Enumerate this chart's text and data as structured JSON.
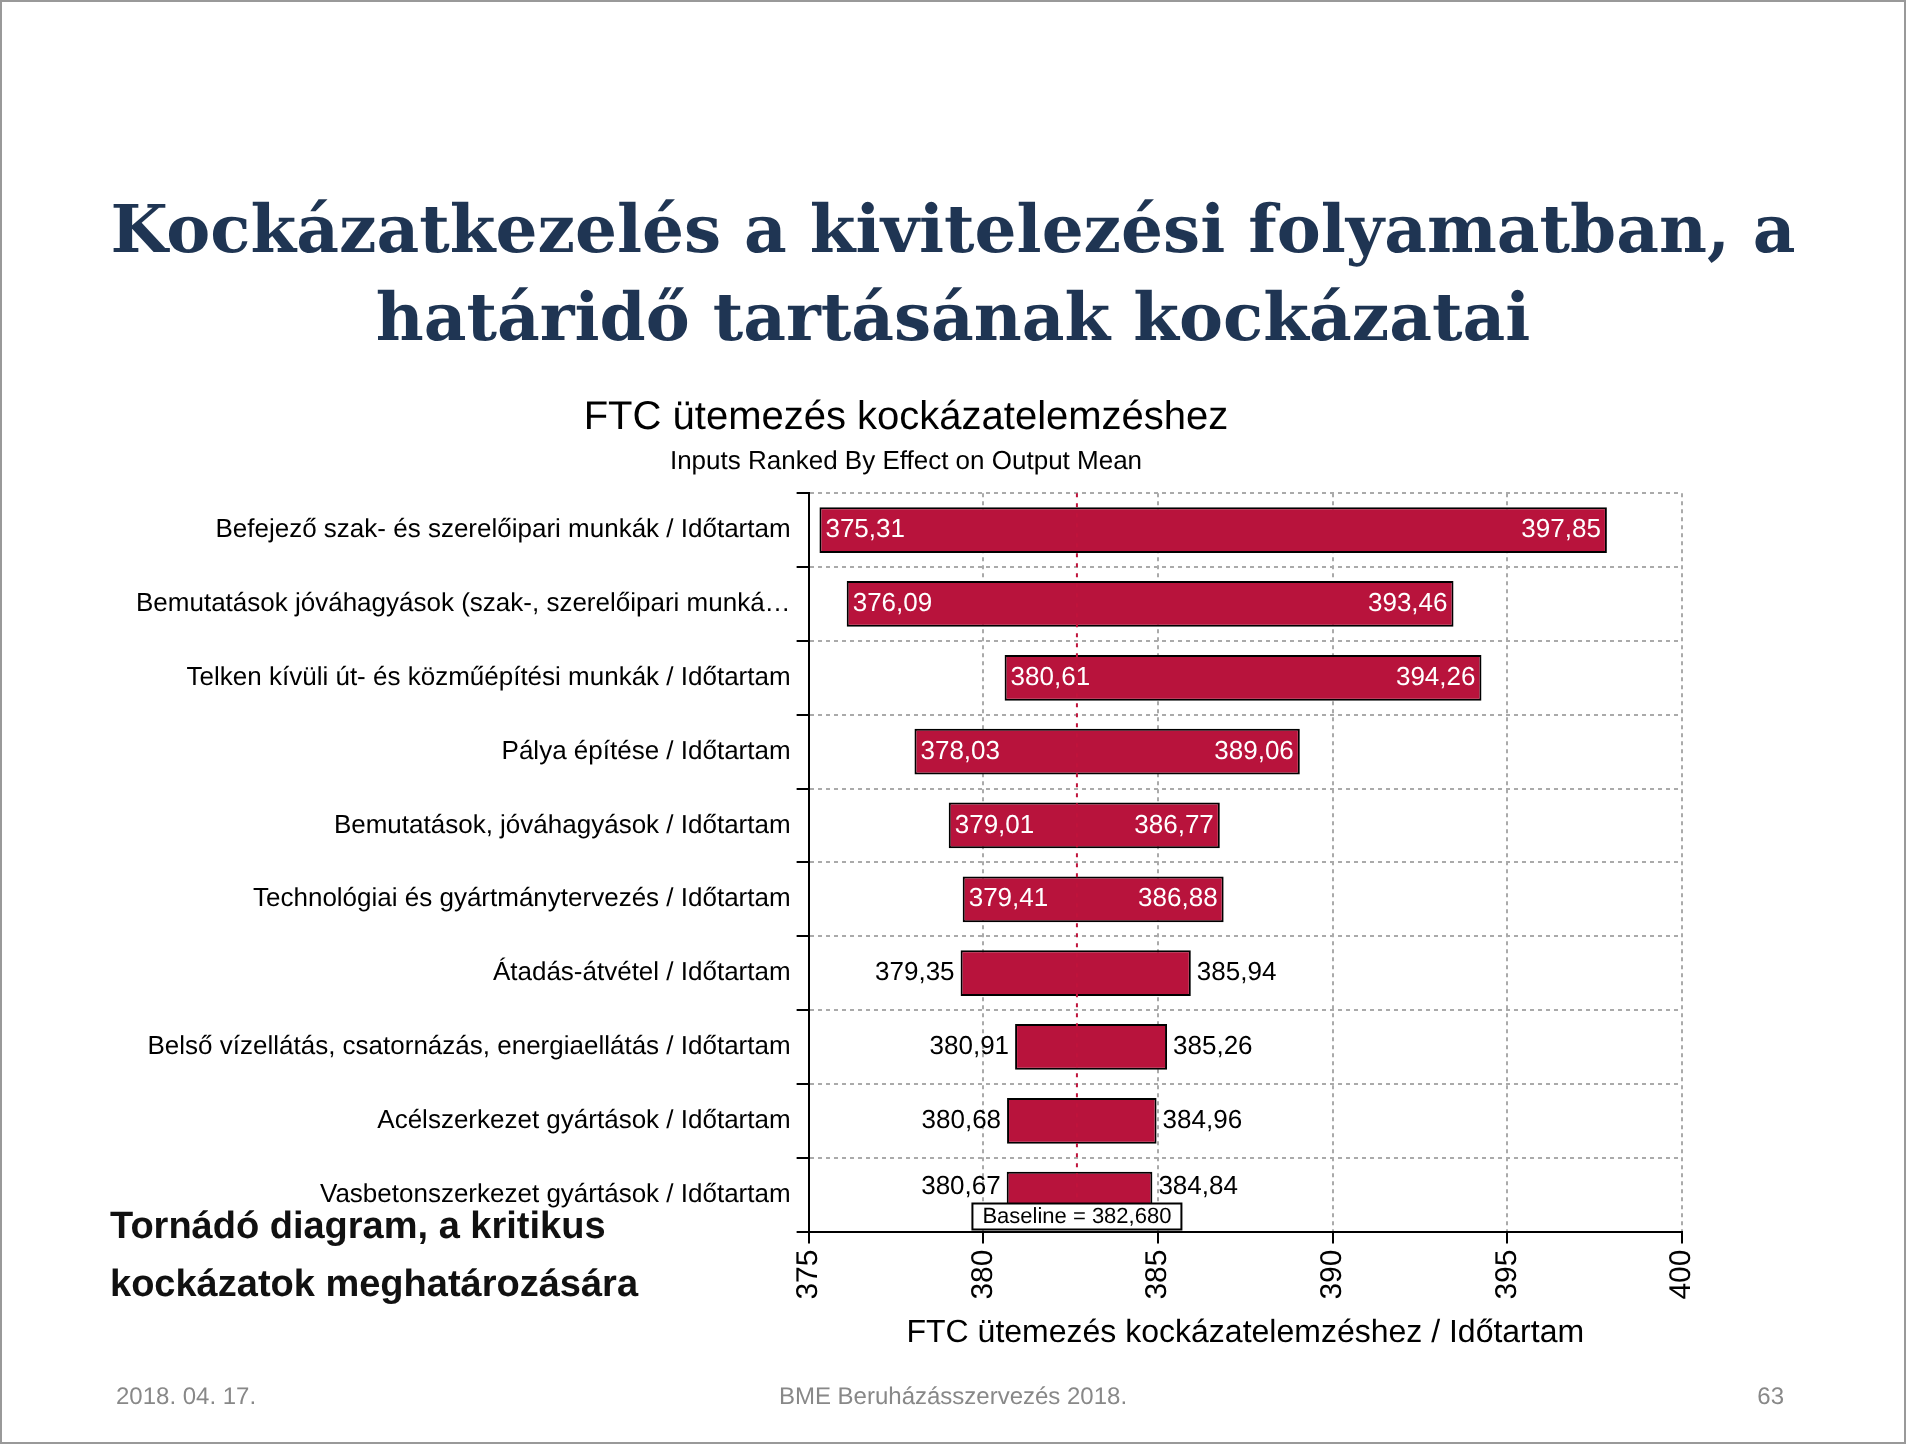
{
  "chart_data": {
    "type": "bar",
    "orientation": "horizontal",
    "title": "FTC ütemezés kockázatelemzéshez",
    "subtitle": "Inputs Ranked By Effect on Output Mean",
    "xlabel": "FTC ütemezés kockázatelemzéshez / Időtartam",
    "categories": [
      "Befejező szak- és szerelőipari munkák / Időtartam",
      "Bemutatások jóváhagyások (szak-, szerelőipari munká…",
      "Telken kívüli út- és közműépítési munkák / Időtartam",
      "Pálya építése / Időtartam",
      "Bemutatások, jóváhagyások / Időtartam",
      "Technológiai és gyártmánytervezés / Időtartam",
      "Átadás-átvétel / Időtartam",
      "Belső vízellátás, csatornázás, energiaellátás / Időtartam",
      "Acélszerkezet gyártások / Időtartam",
      "Vasbetonszerkezet gyártások / Időtartam"
    ],
    "base": [
      375.31,
      376.09,
      380.61,
      378.03,
      379.01,
      379.41,
      379.35,
      380.91,
      380.68,
      380.67
    ],
    "values": [
      22.54,
      17.37,
      13.65,
      11.03,
      7.76,
      7.47,
      6.59,
      4.35,
      4.28,
      4.17
    ],
    "color": "#b8133c",
    "xlim": [
      375,
      400
    ],
    "xticks": [
      375,
      380,
      385,
      390,
      395,
      400
    ],
    "grid": true,
    "legend": false,
    "ref_lines": [
      {
        "axis": "x",
        "value": 382.68,
        "label": "Baseline = 382,680",
        "color": "#c0143c",
        "line_style": "dotted"
      }
    ],
    "annotations": [
      "Kockázatkezelés a kivitelezési folyamatban, a határidő tartásának kockázatai",
      "Tornádó diagram, a kritikus kockázatok meghatározására",
      "2018. 04. 17.",
      "BME Beruházásszervezés 2018.",
      "63",
      {
        "text": "375,31",
        "x": 375.31,
        "y": "Befejező szak- és szerelőipari munkák / Időtartam"
      },
      {
        "text": "397,85",
        "x": 397.85,
        "y": "Befejező szak- és szerelőipari munkák / Időtartam"
      },
      {
        "text": "376,09",
        "x": 376.09,
        "y": "Bemutatások jóváhagyások (szak-, szerelőipari munká…"
      },
      {
        "text": "393,46",
        "x": 393.46,
        "y": "Bemutatások jóváhagyások (szak-, szerelőipari munká…"
      },
      {
        "text": "380,61",
        "x": 380.61,
        "y": "Telken kívüli út- és közműépítési munkák / Időtartam"
      },
      {
        "text": "394,26",
        "x": 394.26,
        "y": "Telken kívüli út- és közműépítési munkák / Időtartam"
      },
      {
        "text": "378,03",
        "x": 378.03,
        "y": "Pálya építése / Időtartam"
      },
      {
        "text": "389,06",
        "x": 389.06,
        "y": "Pálya építése / Időtartam"
      },
      {
        "text": "379,01",
        "x": 379.01,
        "y": "Bemutatások, jóváhagyások / Időtartam"
      },
      {
        "text": "386,77",
        "x": 386.77,
        "y": "Bemutatások, jóváhagyások / Időtartam"
      },
      {
        "text": "379,41",
        "x": 379.41,
        "y": "Technológiai és gyártmánytervezés / Időtartam"
      },
      {
        "text": "386,88",
        "x": 386.88,
        "y": "Technológiai és gyártmánytervezés / Időtartam"
      },
      {
        "text": "379,35",
        "x": 379.35,
        "y": "Átadás-átvétel / Időtartam"
      },
      {
        "text": "385,94",
        "x": 385.94,
        "y": "Átadás-átvétel / Időtartam"
      },
      {
        "text": "380,91",
        "x": 380.91,
        "y": "Belső vízellátás, csatornázás, energiaellátás / Időtartam"
      },
      {
        "text": "385,26",
        "x": 385.26,
        "y": "Belső vízellátás, csatornázás, energiaellátás / Időtartam"
      },
      {
        "text": "380,68",
        "x": 380.68,
        "y": "Acélszerkezet gyártások / Időtartam"
      },
      {
        "text": "384,96",
        "x": 384.96,
        "y": "Acélszerkezet gyártások / Időtartam"
      },
      {
        "text": "380,67",
        "x": 380.67,
        "y": "Vasbetonszerkezet gyártások / Időtartam"
      },
      {
        "text": "384,84",
        "x": 384.84,
        "y": "Vasbetonszerkezet gyártások / Időtartam"
      }
    ]
  }
}
